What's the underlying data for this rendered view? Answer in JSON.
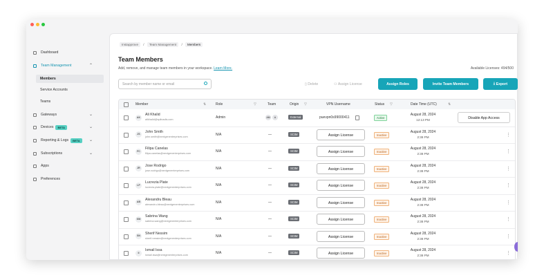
{
  "sidebar": {
    "items": [
      {
        "label": "Dashboard"
      },
      {
        "label": "Team Management",
        "children": [
          "Members",
          "Service Accounts",
          "Teams"
        ]
      },
      {
        "label": "Gateways"
      },
      {
        "label": "Devices",
        "badge": "BETA"
      },
      {
        "label": "Reporting & Logs",
        "badge": "BETA"
      },
      {
        "label": "Subscriptions"
      },
      {
        "label": "Apps"
      },
      {
        "label": "Preferences"
      }
    ]
  },
  "header": {
    "breadcrumb": [
      "Instapprove",
      "Team Management",
      "Members"
    ],
    "title": "Team Members",
    "subtitle": "Add, remove, and manage team members in your workspace.",
    "learn_more": "Learn More.",
    "licenses": "Available Licenses: 494/500"
  },
  "toolbar": {
    "search_placeholder": "Search by member name or email",
    "delete": "Delete",
    "assign_license": "Assign License",
    "assign_roles": "Assign Roles",
    "invite": "Invite Team Members",
    "export": "Export"
  },
  "table": {
    "headers": [
      "Member",
      "Role",
      "Team",
      "Origin",
      "VPN Username",
      "Status",
      "Date Time (UTC)"
    ],
    "rows": [
      {
        "initials": "AK",
        "name": "Ali Khalid",
        "email": "alikhalid@splinadis.com",
        "role": "Admin",
        "team": [
          "AM",
          "A"
        ],
        "origin": "External",
        "vpn": "puevpn0s99000411",
        "status": "Active",
        "date": "August 28, 2024",
        "time": "12:13 PM",
        "action": "Disable App Access"
      },
      {
        "initials": "JS",
        "name": "John Smith",
        "email": "john.smith@nextgenenterprises.com",
        "role": "N/A",
        "team": "—",
        "origin": "SCIM",
        "vpn": "Assign License",
        "status": "Inactive",
        "date": "August 28, 2024",
        "time": "2:38 PM"
      },
      {
        "initials": "FC",
        "name": "Filipa Canelas",
        "email": "filipa.canelas@nextgenenterprises.com",
        "role": "N/A",
        "team": "—",
        "origin": "SCIM",
        "vpn": "Assign License",
        "status": "Inactive",
        "date": "August 28, 2024",
        "time": "2:38 PM"
      },
      {
        "initials": "JR",
        "name": "Jose Rodrigo",
        "email": "jose.rodrigo@nextgenenterprises.com",
        "role": "N/A",
        "team": "—",
        "origin": "SCIM",
        "vpn": "Assign License",
        "status": "Inactive",
        "date": "August 28, 2024",
        "time": "2:38 PM"
      },
      {
        "initials": "LP",
        "name": "Lucrezia Plate",
        "email": "lucrezia.plate@nextgenenterprises.com",
        "role": "N/A",
        "team": "—",
        "origin": "SCIM",
        "vpn": "Assign License",
        "status": "Inactive",
        "date": "August 28, 2024",
        "time": "2:38 PM"
      },
      {
        "initials": "AB",
        "name": "Alexandru Bleau",
        "email": "alexandru.bleau@nextgenenterprises.com",
        "role": "N/A",
        "team": "—",
        "origin": "SCIM",
        "vpn": "Assign License",
        "status": "Inactive",
        "date": "August 28, 2024",
        "time": "2:38 PM"
      },
      {
        "initials": "SW",
        "name": "Sabrina Wang",
        "email": "sabrina.wang@nextgenenterprises.com",
        "role": "N/A",
        "team": "—",
        "origin": "SCIM",
        "vpn": "Assign License",
        "status": "Inactive",
        "date": "August 28, 2024",
        "time": "2:38 PM"
      },
      {
        "initials": "SN",
        "name": "Sherif Nessim",
        "email": "sherif.nessim@nextgenenterprises.com",
        "role": "N/A",
        "team": "—",
        "origin": "SCIM",
        "vpn": "Assign License",
        "status": "Inactive",
        "date": "August 28, 2024",
        "time": "2:38 PM"
      },
      {
        "initials": "II",
        "name": "Ismail Issa",
        "email": "ismail.issa@nextgenenterprises.com",
        "role": "N/A",
        "team": "—",
        "origin": "SCIM",
        "vpn": "Assign License",
        "status": "Inactive",
        "date": "August 28, 2024",
        "time": "2:38 PM"
      }
    ]
  }
}
